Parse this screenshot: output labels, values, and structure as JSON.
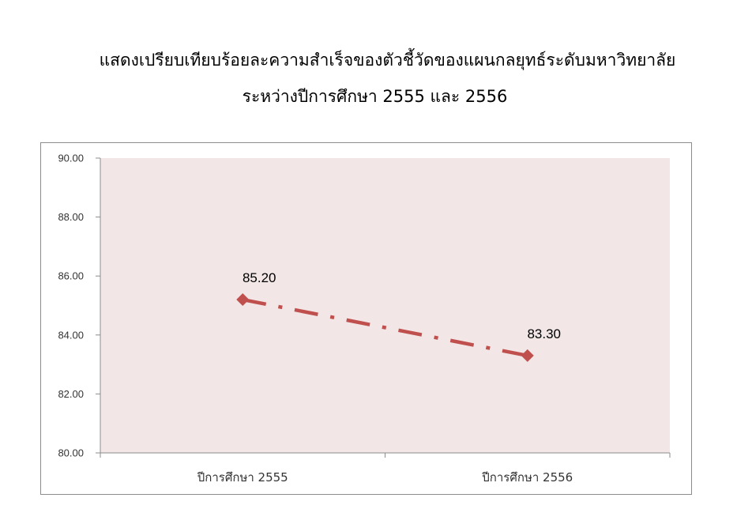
{
  "chart_data": {
    "type": "line",
    "title": "แสดงเปรียบเทียบร้อยละความสำเร็จของตัวชี้วัดของแผนกลยุทธ์ระดับมหาวิทยาลัย",
    "subtitle": "ระหว่างปีการศึกษา  2555 และ 2556",
    "categories": [
      "ปีการศึกษา 2555",
      "ปีการศึกษา 2556"
    ],
    "series": [
      {
        "values": [
          85.2,
          83.3
        ],
        "data_labels": [
          "85.20",
          "83.30"
        ]
      }
    ],
    "y_ticks": [
      "80.00",
      "82.00",
      "84.00",
      "86.00",
      "88.00",
      "90.00"
    ],
    "ylim": [
      80,
      90
    ],
    "xlabel": "",
    "ylabel": "",
    "grid": false,
    "legend": "none",
    "line_style": "dash-dot",
    "marker": "diamond",
    "colors": {
      "series": "#c0504d",
      "plot_background": "#f2e6e6",
      "axis": "#8c8c8c"
    }
  }
}
